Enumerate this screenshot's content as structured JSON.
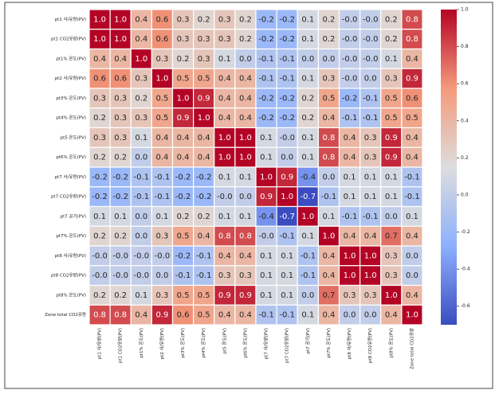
{
  "chart_data": {
    "type": "heatmap",
    "x_labels": [
      "pt1 사/유량(PV)",
      "pt1 CO2유량(PV)",
      "pt1% 온도(PV)",
      "pt2 사/유량(PV)",
      "pt3% 온도(PV)",
      "pt4% 온도(PV)",
      "pt5 온도(PV)",
      "pt6% 온도(PV)",
      "pt7 사/유량(PV)",
      "pt7 CO2유량(PV)",
      "pt7 공기(PV)",
      "pt7% 온도(PV)",
      "pt8 사/유량(PV)",
      "pt8 CO2유량(PV)",
      "pt8% 온도(PV)",
      "Zone total CO2유량"
    ],
    "y_labels": [
      "pt1 사/유량(PV)",
      "pt1 CO2유량(PV)",
      "pt1% 온도(PV)",
      "pt2 사/유량(PV)",
      "pt3% 온도(PV)",
      "pt4% 온도(PV)",
      "pt5 온도(PV)",
      "pt6% 온도(PV)",
      "pt7 사/유량(PV)",
      "pt7 CO2유량(PV)",
      "pt7 공기(PV)",
      "pt7% 온도(PV)",
      "pt8 사/유량(PV)",
      "pt8 CO2유량(PV)",
      "pt8% 온도(PV)",
      "Zone total CO2유량"
    ],
    "values": [
      [
        1.0,
        1.0,
        0.4,
        0.6,
        0.3,
        0.2,
        0.3,
        0.2,
        -0.2,
        -0.2,
        0.1,
        0.2,
        0,
        0,
        0.2,
        0.8
      ],
      [
        1.0,
        1.0,
        0.4,
        0.6,
        0.3,
        0.3,
        0.3,
        0.2,
        -0.2,
        -0.2,
        0.1,
        0.2,
        0,
        0,
        0.2,
        0.8
      ],
      [
        0.4,
        0.4,
        1.0,
        0.3,
        0.2,
        0.3,
        0.1,
        0.0,
        -0.1,
        -0.1,
        0.0,
        0.0,
        0,
        0,
        0.1,
        0.4
      ],
      [
        0.6,
        0.6,
        0.3,
        1.0,
        0.5,
        0.5,
        0.4,
        0.4,
        -0.1,
        -0.1,
        0.1,
        0.3,
        0,
        0.0,
        0.3,
        0.9
      ],
      [
        0.3,
        0.3,
        0.2,
        0.5,
        1.0,
        0.9,
        0.4,
        0.4,
        -0.2,
        -0.2,
        0.2,
        0.5,
        -0.2,
        -0.1,
        0.5,
        0.6
      ],
      [
        0.2,
        0.3,
        0.3,
        0.5,
        0.9,
        1.0,
        0.4,
        0.4,
        -0.2,
        -0.2,
        0.2,
        0.4,
        -0.1,
        -0.1,
        0.5,
        0.5
      ],
      [
        0.3,
        0.3,
        0.1,
        0.4,
        0.4,
        0.4,
        1.0,
        1.0,
        0.1,
        0,
        0.1,
        0.8,
        0.4,
        0.3,
        0.9,
        0.4
      ],
      [
        0.2,
        0.2,
        0.0,
        0.4,
        0.4,
        0.4,
        1.0,
        1.0,
        0.1,
        0.0,
        0.1,
        0.8,
        0.4,
        0.3,
        0.9,
        0.4
      ],
      [
        -0.2,
        -0.2,
        -0.1,
        -0.1,
        -0.2,
        -0.2,
        0.1,
        0.1,
        1.0,
        0.9,
        -0.4,
        0.0,
        0.1,
        0.1,
        0.1,
        -0.1
      ],
      [
        -0.2,
        -0.2,
        -0.1,
        -0.1,
        -0.2,
        -0.2,
        0,
        0.0,
        0.9,
        1.0,
        -0.7,
        -0.1,
        0.1,
        0.1,
        0.1,
        -0.1
      ],
      [
        0.1,
        0.1,
        0.0,
        0.1,
        0.2,
        0.2,
        0.1,
        0.1,
        -0.4,
        -0.7,
        1.0,
        0.1,
        -0.1,
        -0.1,
        0.0,
        0.1
      ],
      [
        0.2,
        0.2,
        0.0,
        0.3,
        0.5,
        0.4,
        0.8,
        0.8,
        0,
        -0.1,
        0.1,
        1.0,
        0.4,
        0.4,
        0.7,
        0.4
      ],
      [
        0,
        0,
        0,
        0,
        -0.2,
        -0.1,
        0.4,
        0.4,
        0.1,
        0.1,
        -0.1,
        0.4,
        1.0,
        1.0,
        0.3,
        0.0
      ],
      [
        0,
        0,
        0,
        0.0,
        -0.1,
        -0.1,
        0.3,
        0.3,
        0.1,
        0.1,
        -0.1,
        0.4,
        1.0,
        1.0,
        0.3,
        0.0
      ],
      [
        0.2,
        0.2,
        0.1,
        0.3,
        0.5,
        0.5,
        0.9,
        0.9,
        0.1,
        0.1,
        0.0,
        0.7,
        0.3,
        0.3,
        1.0,
        0.4
      ],
      [
        0.8,
        0.8,
        0.4,
        0.9,
        0.6,
        0.5,
        0.4,
        0.4,
        -0.1,
        -0.1,
        0.1,
        0.4,
        0.0,
        0.0,
        0.4,
        1.0
      ]
    ],
    "value_labels": [
      [
        "1.0",
        "1.0",
        "0.4",
        "0.6",
        "0.3",
        "0.2",
        "0.3",
        "0.2",
        "-0.2",
        "-0.2",
        "0.1",
        "0.2",
        "-0.0",
        "-0.0",
        "0.2",
        "0.8"
      ],
      [
        "1.0",
        "1.0",
        "0.4",
        "0.6",
        "0.3",
        "0.3",
        "0.3",
        "0.2",
        "-0.2",
        "-0.2",
        "0.1",
        "0.2",
        "-0.0",
        "-0.0",
        "0.2",
        "0.8"
      ],
      [
        "0.4",
        "0.4",
        "1.0",
        "0.3",
        "0.2",
        "0.3",
        "0.1",
        "0.0",
        "-0.1",
        "-0.1",
        "0.0",
        "0.0",
        "-0.0",
        "-0.0",
        "0.1",
        "0.4"
      ],
      [
        "0.6",
        "0.6",
        "0.3",
        "1.0",
        "0.5",
        "0.5",
        "0.4",
        "0.4",
        "-0.1",
        "-0.1",
        "0.1",
        "0.3",
        "-0.0",
        "0.0",
        "0.3",
        "0.9"
      ],
      [
        "0.3",
        "0.3",
        "0.2",
        "0.5",
        "1.0",
        "0.9",
        "0.4",
        "0.4",
        "-0.2",
        "-0.2",
        "0.2",
        "0.5",
        "-0.2",
        "-0.1",
        "0.5",
        "0.6"
      ],
      [
        "0.2",
        "0.3",
        "0.3",
        "0.5",
        "0.9",
        "1.0",
        "0.4",
        "0.4",
        "-0.2",
        "-0.2",
        "0.2",
        "0.4",
        "-0.1",
        "-0.1",
        "0.5",
        "0.5"
      ],
      [
        "0.3",
        "0.3",
        "0.1",
        "0.4",
        "0.4",
        "0.4",
        "1.0",
        "1.0",
        "0.1",
        "-0.0",
        "0.1",
        "0.8",
        "0.4",
        "0.3",
        "0.9",
        "0.4"
      ],
      [
        "0.2",
        "0.2",
        "0.0",
        "0.4",
        "0.4",
        "0.4",
        "1.0",
        "1.0",
        "0.1",
        "0.0",
        "0.1",
        "0.8",
        "0.4",
        "0.3",
        "0.9",
        "0.4"
      ],
      [
        "-0.2",
        "-0.2",
        "-0.1",
        "-0.1",
        "-0.2",
        "-0.2",
        "0.1",
        "0.1",
        "1.0",
        "0.9",
        "-0.4",
        "0.0",
        "0.1",
        "0.1",
        "0.1",
        "-0.1"
      ],
      [
        "-0.2",
        "-0.2",
        "-0.1",
        "-0.1",
        "-0.2",
        "-0.2",
        "-0.0",
        "0.0",
        "0.9",
        "1.0",
        "-0.7",
        "-0.1",
        "0.1",
        "0.1",
        "0.1",
        "-0.1"
      ],
      [
        "0.1",
        "0.1",
        "0.0",
        "0.1",
        "0.2",
        "0.2",
        "0.1",
        "0.1",
        "-0.4",
        "-0.7",
        "1.0",
        "0.1",
        "-0.1",
        "-0.1",
        "0.0",
        "0.1"
      ],
      [
        "0.2",
        "0.2",
        "0.0",
        "0.3",
        "0.5",
        "0.4",
        "0.8",
        "0.8",
        "-0.0",
        "-0.1",
        "0.1",
        "1.0",
        "0.4",
        "0.4",
        "0.7",
        "0.4"
      ],
      [
        "-0.0",
        "-0.0",
        "-0.0",
        "-0.0",
        "-0.2",
        "-0.1",
        "0.4",
        "0.4",
        "0.1",
        "0.1",
        "-0.1",
        "0.4",
        "1.0",
        "1.0",
        "0.3",
        "0.0"
      ],
      [
        "-0.0",
        "-0.0",
        "-0.0",
        "0.0",
        "-0.1",
        "-0.1",
        "0.3",
        "0.3",
        "0.1",
        "0.1",
        "-0.1",
        "0.4",
        "1.0",
        "1.0",
        "0.3",
        "0.0"
      ],
      [
        "0.2",
        "0.2",
        "0.1",
        "0.3",
        "0.5",
        "0.5",
        "0.9",
        "0.9",
        "0.1",
        "0.1",
        "0.0",
        "0.7",
        "0.3",
        "0.3",
        "1.0",
        "0.4"
      ],
      [
        "0.8",
        "0.8",
        "0.4",
        "0.9",
        "0.6",
        "0.5",
        "0.4",
        "0.4",
        "-0.1",
        "-0.1",
        "0.1",
        "0.4",
        "0.0",
        "0.0",
        "0.4",
        "1.0"
      ]
    ],
    "colormap": [
      "#3b4cc0",
      "#8db0fe",
      "#dddddd",
      "#f49a7b",
      "#b40426"
    ],
    "clim": [
      -0.7,
      1.0
    ],
    "cticks": [
      {
        "value": 1.0,
        "label": "1.0"
      },
      {
        "value": 0.8,
        "label": "0.8"
      },
      {
        "value": 0.6,
        "label": "0.6"
      },
      {
        "value": 0.4,
        "label": "0.4"
      },
      {
        "value": 0.2,
        "label": "0.2"
      },
      {
        "value": 0.0,
        "label": "0.0"
      },
      {
        "value": -0.2,
        "label": "-0.2"
      },
      {
        "value": -0.4,
        "label": "-0.4"
      },
      {
        "value": -0.6,
        "label": "-0.6"
      }
    ]
  }
}
